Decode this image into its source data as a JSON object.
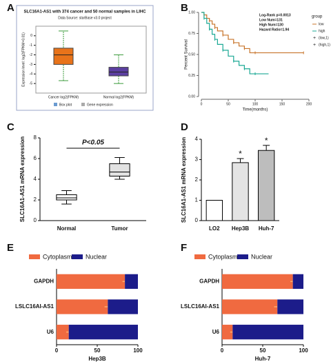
{
  "chart_data": [
    {
      "type": "box",
      "panel_label": "A",
      "title": "SLC16A1-AS1 with 374 cancer and 50 normal samples in LIHC",
      "subtitle": "Data Source: starBase v3.0 project",
      "y_label": "Expression level: log2(FPKM+0.01)",
      "categories": [
        "Cancer log2(FPKM)",
        "Normal log2(FPKM)"
      ],
      "colors": [
        "#e8731a",
        "#5b3fa0"
      ],
      "stats": [
        {
          "whisker_low": -4.7,
          "q1": -3.0,
          "median": -2.0,
          "q3": -1.3,
          "whisker_high": 0.5
        },
        {
          "whisker_low": -5.0,
          "q1": -4.2,
          "median": -3.8,
          "q3": -3.3,
          "whisker_high": -2.0
        }
      ],
      "legend": [
        "Box plot",
        "Gene expression"
      ],
      "ylim": [
        -6,
        1
      ],
      "yticks": [
        -5,
        -4,
        -3,
        -2,
        -1,
        0
      ]
    },
    {
      "type": "line",
      "panel_label": "B",
      "x_label": "Time(months)",
      "y_label": "Percent Survival",
      "annotations": [
        "Log-Rank p=0.0013",
        "Low Num=131",
        "High Num=130",
        "Hazard Ratio=1.94"
      ],
      "legend_title": "group",
      "series": [
        {
          "name": "low",
          "censor_name": "(low,1)",
          "color": "#c8742a",
          "x": [
            0,
            5,
            10,
            15,
            20,
            25,
            30,
            40,
            50,
            60,
            70,
            80,
            90,
            100,
            150,
            190
          ],
          "values": [
            1,
            0.97,
            0.93,
            0.9,
            0.86,
            0.82,
            0.78,
            0.73,
            0.68,
            0.64,
            0.6,
            0.57,
            0.52,
            0.52,
            0.52,
            0.52
          ]
        },
        {
          "name": "high",
          "censor_name": "(high,1)",
          "color": "#1aa894",
          "x": [
            0,
            5,
            10,
            15,
            20,
            25,
            30,
            40,
            50,
            60,
            70,
            80,
            90,
            100,
            125
          ],
          "values": [
            1,
            0.93,
            0.87,
            0.8,
            0.74,
            0.68,
            0.62,
            0.55,
            0.48,
            0.42,
            0.37,
            0.33,
            0.27,
            0.27,
            0.27
          ]
        }
      ],
      "xlim": [
        0,
        200
      ],
      "xticks": [
        0,
        50,
        100,
        150,
        200
      ],
      "ylim": [
        0,
        1
      ],
      "yticks": [
        {
          "value": 0,
          "label": "0.00"
        },
        0.25,
        {
          "value": 0.5,
          "label": "0.50"
        },
        0.75,
        {
          "value": 1,
          "label": "1.00"
        }
      ]
    },
    {
      "type": "box",
      "panel_label": "C",
      "y_label": "SLC16A1-AS1 mRNA expression",
      "annotation": "P<0.05",
      "categories": [
        "Normal",
        "Tumor"
      ],
      "colors": [
        "#ffffff",
        "#e2e2e2"
      ],
      "stats": [
        {
          "whisker_low": 1.6,
          "q1": 2.0,
          "median": 2.2,
          "q3": 2.5,
          "whisker_high": 2.9
        },
        {
          "whisker_low": 4.0,
          "q1": 4.3,
          "median": 4.7,
          "q3": 5.5,
          "whisker_high": 6.1
        }
      ],
      "ylim": [
        0,
        8
      ],
      "yticks": [
        0,
        2,
        4,
        6,
        8
      ]
    },
    {
      "type": "bar",
      "panel_label": "D",
      "y_label": "SLC16A1-AS1 mRNA expression",
      "categories": [
        "LO2",
        "Hep3B",
        "Huh-7"
      ],
      "values": [
        1,
        2.85,
        3.45
      ],
      "errors": [
        null,
        0.2,
        0.25
      ],
      "significance": [
        null,
        "*",
        "*"
      ],
      "colors": [
        "#ffffff",
        "#e4e4e4",
        "#bdbdbd"
      ],
      "ylim": [
        0,
        4
      ],
      "yticks": [
        0,
        1,
        2,
        3,
        4
      ]
    },
    {
      "type": "stacked-barh",
      "panel_label": "E",
      "x_label": "Hep3B",
      "categories": [
        "GAPDH",
        "LSLC16AI-AS1",
        "U6"
      ],
      "series": [
        {
          "name": "Cytoplasm",
          "color": "#f06a40",
          "values": [
            84,
            63,
            15
          ],
          "errors": [
            3,
            4,
            3
          ]
        },
        {
          "name": "Nuclear",
          "color": "#1c1c8a",
          "values": [
            16,
            37,
            85
          ]
        }
      ],
      "xlim": [
        0,
        100
      ],
      "xticks": [
        0,
        50,
        100
      ]
    },
    {
      "type": "stacked-barh",
      "panel_label": "F",
      "x_label": "Huh-7",
      "categories": [
        "GAPDH",
        "LSLC16AI-AS1",
        "U6"
      ],
      "series": [
        {
          "name": "Cytoplasm",
          "color": "#f06a40",
          "values": [
            87,
            68,
            13
          ],
          "errors": [
            3,
            4,
            3
          ]
        },
        {
          "name": "Nuclear",
          "color": "#1c1c8a",
          "values": [
            13,
            32,
            87
          ]
        }
      ],
      "xlim": [
        0,
        100
      ],
      "xticks": [
        0,
        50,
        100
      ]
    }
  ]
}
